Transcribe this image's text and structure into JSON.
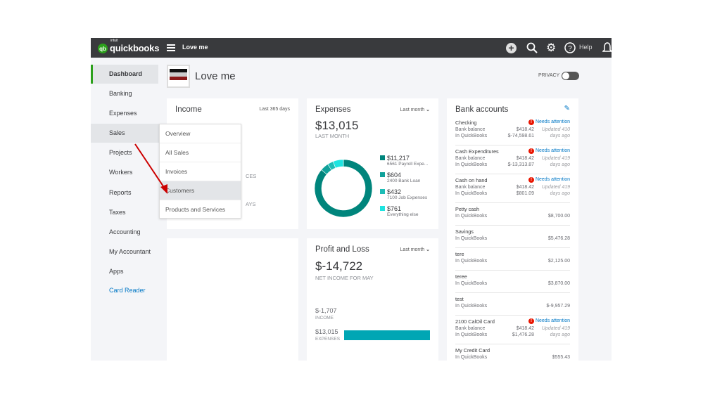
{
  "topbar": {
    "brand": "quickbooks",
    "brand_prefix": "intuit",
    "company": "Love me",
    "help": "Help"
  },
  "sidebar": {
    "items": [
      {
        "label": "Dashboard"
      },
      {
        "label": "Banking"
      },
      {
        "label": "Expenses"
      },
      {
        "label": "Sales"
      },
      {
        "label": "Projects"
      },
      {
        "label": "Workers"
      },
      {
        "label": "Reports"
      },
      {
        "label": "Taxes"
      },
      {
        "label": "Accounting"
      },
      {
        "label": "My Accountant"
      },
      {
        "label": "Apps"
      },
      {
        "label": "Card Reader"
      }
    ]
  },
  "sales_menu": {
    "items": [
      {
        "label": "Overview"
      },
      {
        "label": "All Sales"
      },
      {
        "label": "Invoices"
      },
      {
        "label": "Customers"
      },
      {
        "label": "Products and Services"
      }
    ]
  },
  "header": {
    "company": "Love me",
    "privacy": "PRIVACY"
  },
  "income": {
    "title": "Income",
    "range": "Last 365 days",
    "partial1": "CES",
    "partial2": "AYS"
  },
  "expenses": {
    "title": "Expenses",
    "range": "Last month",
    "total": "$13,015",
    "subtitle": "LAST MONTH",
    "legend": [
      {
        "amount": "$11,217",
        "label": "6561 Payroll Expe...",
        "value": 11217,
        "color": "#00857c"
      },
      {
        "amount": "$604",
        "label": "2400 Bank Loan",
        "value": 604,
        "color": "#10a19a"
      },
      {
        "amount": "$432",
        "label": "7100 Job Expenses",
        "value": 432,
        "color": "#1dbdb6"
      },
      {
        "amount": "$761",
        "label": "Everything else",
        "value": 761,
        "color": "#1ee4e0"
      }
    ]
  },
  "pnl": {
    "title": "Profit and Loss",
    "range": "Last month",
    "net": "$-14,722",
    "subtitle": "NET INCOME FOR MAY",
    "income": "$-1,707",
    "income_label": "INCOME",
    "expenses": "$13,015",
    "expenses_label": "EXPENSES",
    "bar_color": "#00a6b4"
  },
  "bank": {
    "title": "Bank accounts",
    "accounts": [
      {
        "name": "Checking",
        "attention": "Needs attention",
        "bank_label": "Bank balance",
        "bank": "$418.42",
        "qb_label": "In QuickBooks",
        "qb": "$-74,598.61",
        "updated1": "Updated 410",
        "updated2": "days ago"
      },
      {
        "name": "Cash Expenditures",
        "attention": "Needs attention",
        "bank_label": "Bank balance",
        "bank": "$418.42",
        "qb_label": "In QuickBooks",
        "qb": "$-13,313.87",
        "updated1": "Updated 419",
        "updated2": "days ago"
      },
      {
        "name": "Cash on hand",
        "attention": "Needs attention",
        "bank_label": "Bank balance",
        "bank": "$418.42",
        "qb_label": "In QuickBooks",
        "qb": "$801.09",
        "updated1": "Updated 419",
        "updated2": "days ago"
      },
      {
        "name": "Petty cash",
        "qb_label": "In QuickBooks",
        "qb": "$8,700.00"
      },
      {
        "name": "Savings",
        "qb_label": "In QuickBooks",
        "qb": "$5,476.28"
      },
      {
        "name": "tere",
        "qb_label": "In QuickBooks",
        "qb": "$2,125.00"
      },
      {
        "name": "teree",
        "qb_label": "In QuickBooks",
        "qb": "$3,870.00"
      },
      {
        "name": "test",
        "qb_label": "In QuickBooks",
        "qb": "$-9,957.29"
      },
      {
        "name": "2100 CalOil Card",
        "attention": "Needs attention",
        "bank_label": "Bank balance",
        "bank": "$418.42",
        "qb_label": "In QuickBooks",
        "qb": "$1,476.28",
        "updated1": "Updated 419",
        "updated2": "days ago"
      },
      {
        "name": "My Credit Card",
        "qb_label": "In QuickBooks",
        "qb": "$555.43"
      }
    ]
  }
}
